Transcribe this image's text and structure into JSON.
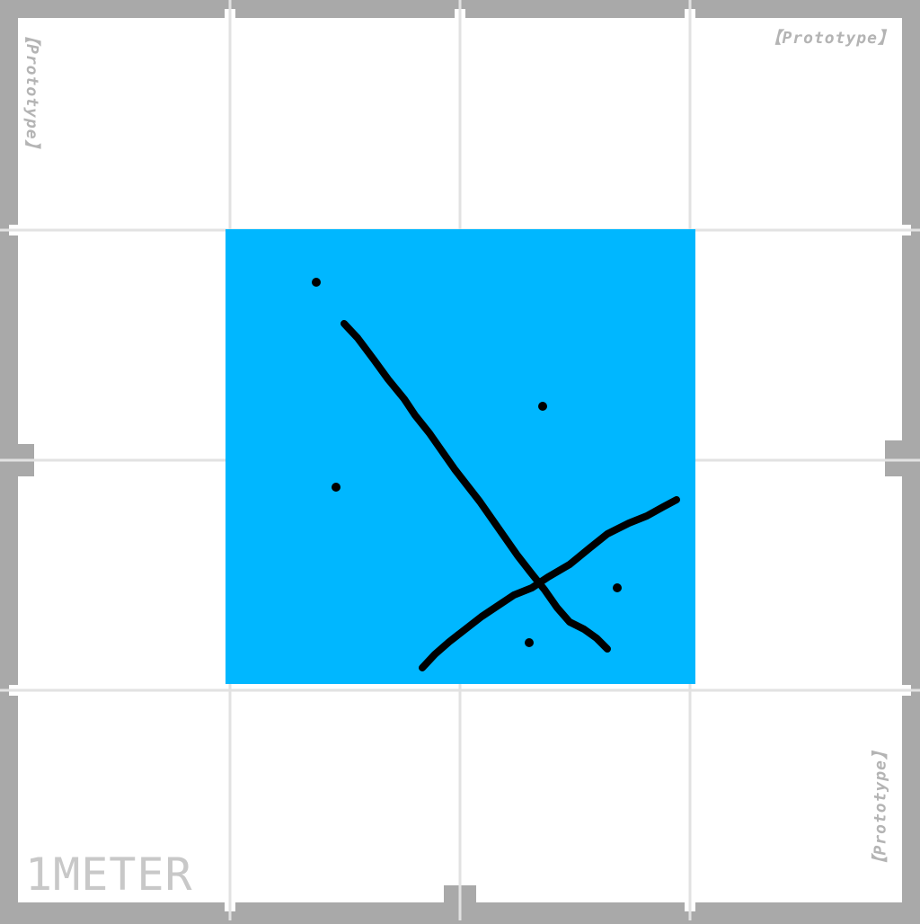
{
  "texture": {
    "watermark_text": "【Prototype】",
    "scale_label": "1METER",
    "colors": {
      "frame": "#a9a9a9",
      "tile": "#ffffff",
      "grid_line": "#e2e2e2",
      "label": "#b4b4b4",
      "highlight_square": "#00b7ff",
      "marks": "#000000"
    },
    "grid_divisions": 4
  }
}
